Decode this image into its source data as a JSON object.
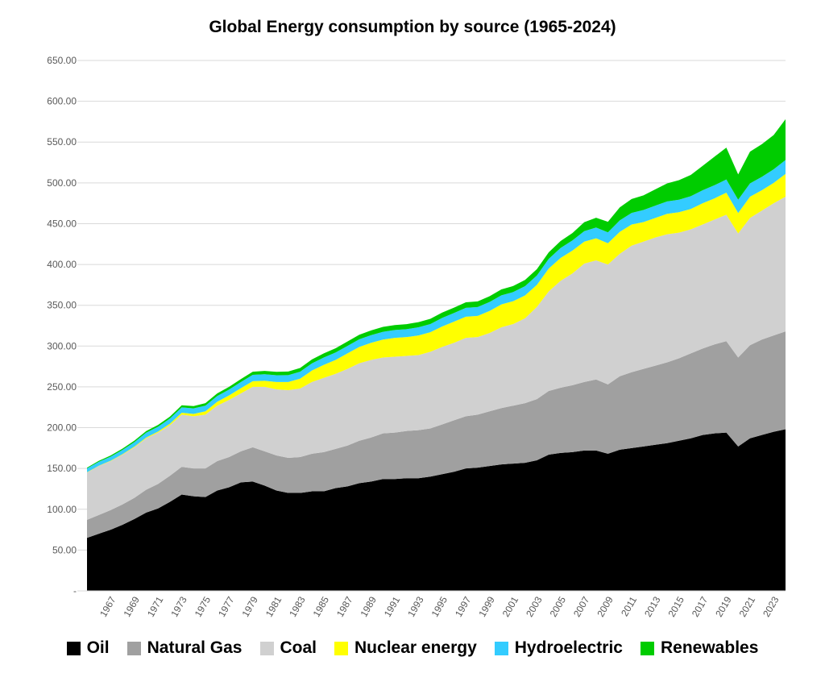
{
  "chart_data": {
    "type": "area",
    "stacked": true,
    "title": "Global Energy consumption by source (1965-2024)",
    "xlabel": "",
    "ylabel": "",
    "ylim": [
      0,
      650
    ],
    "y_ticks": [
      "-",
      "50.00",
      "100.00",
      "150.00",
      "200.00",
      "250.00",
      "300.00",
      "350.00",
      "400.00",
      "450.00",
      "500.00",
      "550.00",
      "600.00",
      "650.00"
    ],
    "y_tick_values": [
      0,
      50,
      100,
      150,
      200,
      250,
      300,
      350,
      400,
      450,
      500,
      550,
      600,
      650
    ],
    "x_tick_labels": [
      "1967",
      "1969",
      "1971",
      "1973",
      "1975",
      "1977",
      "1979",
      "1981",
      "1983",
      "1985",
      "1987",
      "1989",
      "1991",
      "1993",
      "1995",
      "1997",
      "1999",
      "2001",
      "2003",
      "2005",
      "2007",
      "2009",
      "2011",
      "2013",
      "2015",
      "2017",
      "2019",
      "2021",
      "2023"
    ],
    "grid": "horizontal",
    "legend_position": "bottom",
    "x": [
      1965,
      1966,
      1967,
      1968,
      1969,
      1970,
      1971,
      1972,
      1973,
      1974,
      1975,
      1976,
      1977,
      1978,
      1979,
      1980,
      1981,
      1982,
      1983,
      1984,
      1985,
      1986,
      1987,
      1988,
      1989,
      1990,
      1991,
      1992,
      1993,
      1994,
      1995,
      1996,
      1997,
      1998,
      1999,
      2000,
      2001,
      2002,
      2003,
      2004,
      2005,
      2006,
      2007,
      2008,
      2009,
      2010,
      2011,
      2012,
      2013,
      2014,
      2015,
      2016,
      2017,
      2018,
      2019,
      2020,
      2021,
      2022,
      2023,
      2024
    ],
    "series": [
      {
        "name": "Oil",
        "color": "#000000",
        "values": [
          65,
          70,
          75,
          81,
          88,
          96,
          101,
          109,
          118,
          116,
          115,
          123,
          127,
          133,
          134,
          129,
          123,
          120,
          120,
          122,
          122,
          126,
          128,
          132,
          134,
          137,
          137,
          138,
          138,
          140,
          143,
          146,
          150,
          151,
          153,
          155,
          156,
          157,
          160,
          167,
          169,
          170,
          172,
          172,
          168,
          173,
          175,
          177,
          179,
          181,
          184,
          187,
          191,
          193,
          194,
          177,
          187,
          191,
          195,
          198
        ]
      },
      {
        "name": "Natural Gas",
        "color": "#a0a0a0",
        "values": [
          22,
          23,
          24,
          25,
          26,
          28,
          30,
          32,
          34,
          34,
          35,
          36,
          37,
          38,
          42,
          42,
          43,
          43,
          44,
          46,
          48,
          48,
          50,
          52,
          54,
          56,
          57,
          58,
          59,
          59,
          61,
          63,
          64,
          65,
          67,
          69,
          71,
          73,
          75,
          78,
          80,
          82,
          84,
          87,
          85,
          90,
          93,
          95,
          97,
          99,
          101,
          104,
          106,
          109,
          112,
          109,
          114,
          117,
          118,
          120
        ]
      },
      {
        "name": "Coal",
        "color": "#d0d0d0",
        "values": [
          58,
          60,
          60,
          61,
          62,
          63,
          63,
          62,
          64,
          64,
          66,
          68,
          70,
          71,
          74,
          79,
          81,
          83,
          84,
          88,
          91,
          92,
          94,
          95,
          95,
          93,
          93,
          92,
          92,
          94,
          95,
          95,
          96,
          95,
          96,
          99,
          100,
          104,
          113,
          122,
          131,
          137,
          145,
          146,
          147,
          150,
          155,
          156,
          157,
          157,
          154,
          152,
          152,
          153,
          155,
          152,
          156,
          158,
          162,
          165
        ]
      },
      {
        "name": "Nuclear energy",
        "color": "#ffff00",
        "values": [
          0.3,
          0.4,
          0.5,
          0.6,
          0.8,
          1,
          1.2,
          1.8,
          2.3,
          2.8,
          4,
          4.8,
          5.5,
          6.5,
          7,
          7.5,
          9,
          10,
          12,
          14,
          16,
          17,
          19,
          20,
          21,
          22,
          23,
          23,
          24,
          24,
          25,
          26,
          26,
          26,
          27,
          28,
          28,
          28,
          27,
          28,
          28,
          28,
          27,
          27,
          26,
          27,
          26,
          24,
          24,
          25,
          25,
          25,
          26,
          26,
          27,
          25,
          26,
          25,
          25,
          28
        ]
      },
      {
        "name": "Hydroelectric",
        "color": "#33ccff",
        "values": [
          4.7,
          4.8,
          5,
          5.2,
          5.5,
          5.8,
          6,
          6.3,
          6.5,
          6.8,
          7,
          7,
          7.2,
          7.5,
          7.8,
          8,
          8.2,
          8.4,
          8.6,
          8.8,
          9,
          9.1,
          9.2,
          9.3,
          9.4,
          9.5,
          9.7,
          9.7,
          10,
          10,
          10.5,
          10.5,
          10.8,
          10.9,
          11,
          11.2,
          11.2,
          11.4,
          11.5,
          11.9,
          12.2,
          12.5,
          12.8,
          13.3,
          13.3,
          14,
          14.2,
          14.7,
          15.1,
          15.3,
          15.3,
          15.7,
          15.9,
          16.1,
          16.2,
          16.4,
          16.3,
          16.4,
          16.6,
          17
        ]
      },
      {
        "name": "Renewables",
        "color": "#00cc00",
        "values": [
          1,
          1.2,
          1.4,
          1.6,
          1.8,
          2,
          2.2,
          2.4,
          2.6,
          2.8,
          3,
          3.2,
          3.4,
          3.6,
          3.8,
          4,
          4.2,
          4.4,
          4.6,
          4.8,
          5,
          5.2,
          5.4,
          5.6,
          5.8,
          6,
          6.1,
          6.2,
          6.3,
          6.4,
          6.5,
          6.6,
          6.8,
          6.9,
          7,
          7.2,
          7.4,
          7.6,
          7.8,
          8,
          8.5,
          9,
          11,
          12,
          13,
          16,
          17,
          18,
          20,
          22,
          24,
          26,
          30,
          35,
          39,
          31,
          39,
          40,
          42,
          50
        ]
      }
    ]
  }
}
